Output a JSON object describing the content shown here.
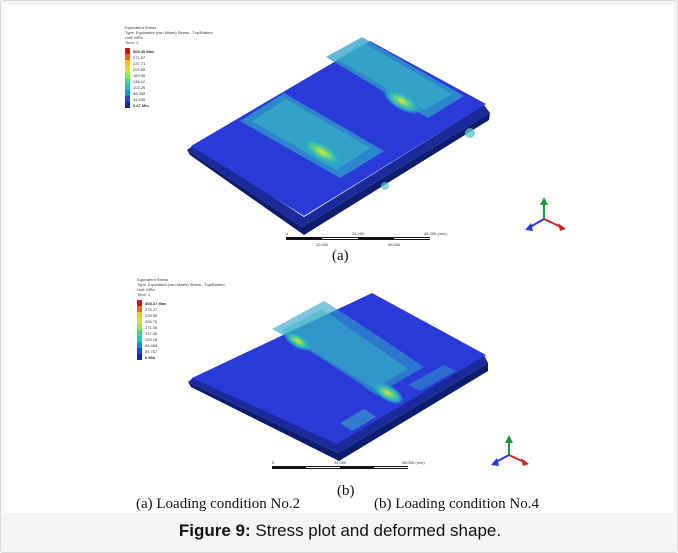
{
  "panel_a": {
    "legend_title_lines": [
      "Equivalent Stress",
      "Type: Equivalent (von-Mises) Stress - Top/Bottom",
      "Unit: MPa",
      "Time: 1"
    ],
    "legend_values": [
      "305.45 Max",
      "271.57",
      "237.71",
      "203.85",
      "169.98",
      "136.12",
      "102.26",
      "68.399",
      "34.538",
      "0.67 Min"
    ],
    "scale_labels": [
      "0",
      "24.000",
      "48.000 (mm)",
      "12.000",
      "36.000"
    ],
    "sub_label": "(a)"
  },
  "panel_b": {
    "legend_title_lines": [
      "Equivalent Stress",
      "Type: Equivalent (von-Mises) Stress - Top/Bottom",
      "Unit: MPa",
      "Time: 1"
    ],
    "legend_values": [
      "308.37 Max",
      "274.27",
      "239.96",
      "205.76",
      "171.56",
      "137.36",
      "103.16",
      "68.958",
      "34.757",
      "0 Min"
    ],
    "scale_labels": [
      "0",
      "24.000",
      "48.000 (mm)",
      "12.000",
      "36.000"
    ],
    "sub_label": "(b)"
  },
  "legend_colors": [
    "#c8141a",
    "#f0641e",
    "#f5c81e",
    "#d8e628",
    "#96e650",
    "#46d28c",
    "#28bebe",
    "#1e8cd2",
    "#1e46c8",
    "#1428a0"
  ],
  "axis_triad": {
    "x_label": "X",
    "y_label": "Y",
    "z_label": "Z"
  },
  "captions": {
    "left": "(a) Loading condition No.2",
    "right": "(b) Loading condition No.4"
  },
  "figure_caption": {
    "prefix": "Figure 9:",
    "text": " Stress plot and deformed shape."
  }
}
